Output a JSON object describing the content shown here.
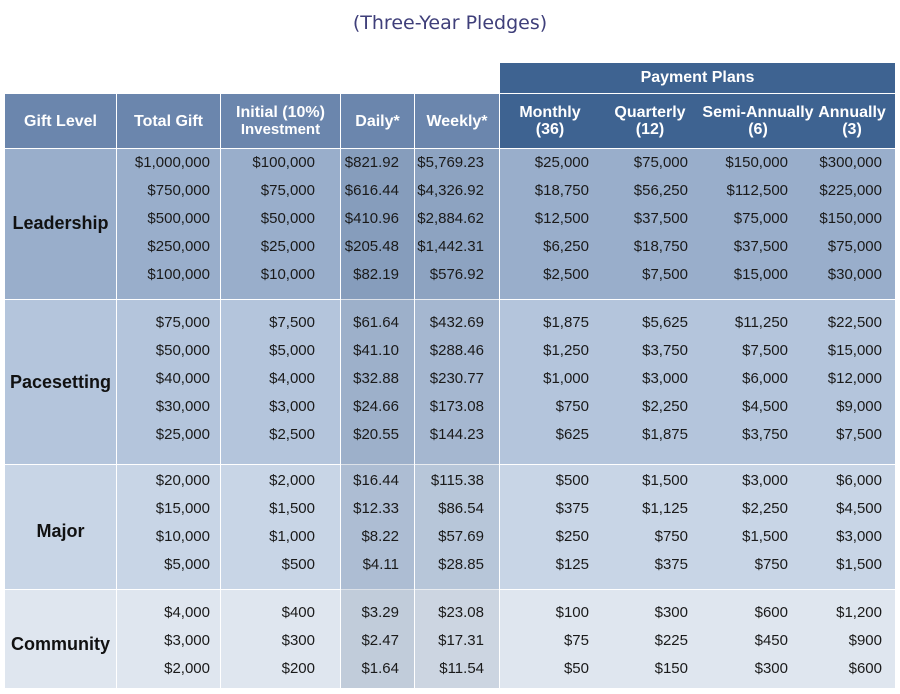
{
  "title": "(Three-Year Pledges)",
  "payment_plans_label": "Payment Plans",
  "headers": {
    "gift_level": "Gift Level",
    "total_gift": "Total Gift",
    "initial_line1": "Initial (10%)",
    "initial_line2": "Investment",
    "daily": "Daily*",
    "weekly": "Weekly*",
    "monthly_line1": "Monthly",
    "monthly_line2": "(36)",
    "quarterly_line1": "Quarterly",
    "quarterly_line2": "(12)",
    "semi_line1": "Semi-Annually",
    "semi_line2": "(6)",
    "annually_line1": "Annually",
    "annually_line2": "(3)"
  },
  "colors": {
    "header_dark": "#3e6391",
    "header_light": "#6b86ad",
    "leadership_band": "#99aecb",
    "pacesetting_band": "#b4c5dc",
    "major_band": "#c8d5e6",
    "community_band": "#dfe6ef",
    "title": "#3f3f7a"
  },
  "groups": [
    {
      "name": "Leadership",
      "rows": [
        {
          "total": "$1,000,000",
          "initial": "$100,000",
          "daily": "$821.92",
          "weekly": "$5,769.23",
          "monthly": "$25,000",
          "quarterly": "$75,000",
          "semi": "$150,000",
          "annually": "$300,000"
        },
        {
          "total": "$750,000",
          "initial": "$75,000",
          "daily": "$616.44",
          "weekly": "$4,326.92",
          "monthly": "$18,750",
          "quarterly": "$56,250",
          "semi": "$112,500",
          "annually": "$225,000"
        },
        {
          "total": "$500,000",
          "initial": "$50,000",
          "daily": "$410.96",
          "weekly": "$2,884.62",
          "monthly": "$12,500",
          "quarterly": "$37,500",
          "semi": "$75,000",
          "annually": "$150,000"
        },
        {
          "total": "$250,000",
          "initial": "$25,000",
          "daily": "$205.48",
          "weekly": "$1,442.31",
          "monthly": "$6,250",
          "quarterly": "$18,750",
          "semi": "$37,500",
          "annually": "$75,000"
        },
        {
          "total": "$100,000",
          "initial": "$10,000",
          "daily": "$82.19",
          "weekly": "$576.92",
          "monthly": "$2,500",
          "quarterly": "$7,500",
          "semi": "$15,000",
          "annually": "$30,000"
        }
      ]
    },
    {
      "name": "Pacesetting",
      "rows": [
        {
          "total": "$75,000",
          "initial": "$7,500",
          "daily": "$61.64",
          "weekly": "$432.69",
          "monthly": "$1,875",
          "quarterly": "$5,625",
          "semi": "$11,250",
          "annually": "$22,500"
        },
        {
          "total": "$50,000",
          "initial": "$5,000",
          "daily": "$41.10",
          "weekly": "$288.46",
          "monthly": "$1,250",
          "quarterly": "$3,750",
          "semi": "$7,500",
          "annually": "$15,000"
        },
        {
          "total": "$40,000",
          "initial": "$4,000",
          "daily": "$32.88",
          "weekly": "$230.77",
          "monthly": "$1,000",
          "quarterly": "$3,000",
          "semi": "$6,000",
          "annually": "$12,000"
        },
        {
          "total": "$30,000",
          "initial": "$3,000",
          "daily": "$24.66",
          "weekly": "$173.08",
          "monthly": "$750",
          "quarterly": "$2,250",
          "semi": "$4,500",
          "annually": "$9,000"
        },
        {
          "total": "$25,000",
          "initial": "$2,500",
          "daily": "$20.55",
          "weekly": "$144.23",
          "monthly": "$625",
          "quarterly": "$1,875",
          "semi": "$3,750",
          "annually": "$7,500"
        }
      ]
    },
    {
      "name": "Major",
      "rows": [
        {
          "total": "$20,000",
          "initial": "$2,000",
          "daily": "$16.44",
          "weekly": "$115.38",
          "monthly": "$500",
          "quarterly": "$1,500",
          "semi": "$3,000",
          "annually": "$6,000"
        },
        {
          "total": "$15,000",
          "initial": "$1,500",
          "daily": "$12.33",
          "weekly": "$86.54",
          "monthly": "$375",
          "quarterly": "$1,125",
          "semi": "$2,250",
          "annually": "$4,500"
        },
        {
          "total": "$10,000",
          "initial": "$1,000",
          "daily": "$8.22",
          "weekly": "$57.69",
          "monthly": "$250",
          "quarterly": "$750",
          "semi": "$1,500",
          "annually": "$3,000"
        },
        {
          "total": "$5,000",
          "initial": "$500",
          "daily": "$4.11",
          "weekly": "$28.85",
          "monthly": "$125",
          "quarterly": "$375",
          "semi": "$750",
          "annually": "$1,500"
        }
      ]
    },
    {
      "name": "Community",
      "rows": [
        {
          "total": "$4,000",
          "initial": "$400",
          "daily": "$3.29",
          "weekly": "$23.08",
          "monthly": "$100",
          "quarterly": "$300",
          "semi": "$600",
          "annually": "$1,200"
        },
        {
          "total": "$3,000",
          "initial": "$300",
          "daily": "$2.47",
          "weekly": "$17.31",
          "monthly": "$75",
          "quarterly": "$225",
          "semi": "$450",
          "annually": "$900"
        },
        {
          "total": "$2,000",
          "initial": "$200",
          "daily": "$1.64",
          "weekly": "$11.54",
          "monthly": "$50",
          "quarterly": "$150",
          "semi": "$300",
          "annually": "$600"
        }
      ]
    }
  ]
}
